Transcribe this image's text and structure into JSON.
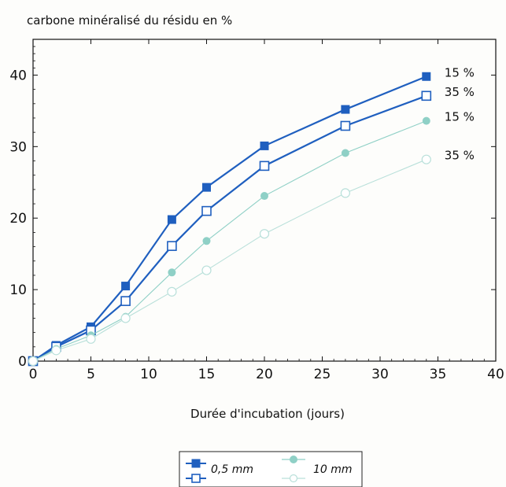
{
  "chart_data": {
    "type": "line",
    "title": "",
    "ylabel": "carbone minéralisé du résidu en %",
    "xlabel": "Durée d'incubation (jours)",
    "xlim": [
      0,
      40
    ],
    "ylim": [
      0,
      45
    ],
    "xticks": [
      0,
      5,
      10,
      15,
      20,
      25,
      30,
      35,
      40
    ],
    "yticks": [
      0,
      10,
      20,
      30,
      40
    ],
    "grid": false,
    "legend_position": "bottom",
    "legend": {
      "entry_dark": "0,5 mm",
      "entry_light": "10 mm"
    },
    "series": [
      {
        "color": "#1f5fbf",
        "marker": "filled-square",
        "end_label": "15 %",
        "x": [
          0,
          2,
          5,
          8,
          12,
          15,
          20,
          27,
          34
        ],
        "y": [
          0,
          2.2,
          4.8,
          10.5,
          19.8,
          24.3,
          30.1,
          35.2,
          39.8
        ]
      },
      {
        "color": "#1f5fbf",
        "marker": "open-square",
        "end_label": "35 %",
        "x": [
          0,
          2,
          5,
          8,
          12,
          15,
          20,
          27,
          34
        ],
        "y": [
          0,
          2.0,
          4.3,
          8.4,
          16.1,
          21.0,
          27.3,
          32.9,
          37.1
        ]
      },
      {
        "color": "#8fd0c6",
        "marker": "filled-circle",
        "end_label": "15 %",
        "x": [
          0,
          2,
          5,
          8,
          12,
          15,
          20,
          27,
          34
        ],
        "y": [
          0,
          1.7,
          3.6,
          6.2,
          12.4,
          16.8,
          23.1,
          29.1,
          33.6
        ]
      },
      {
        "color": "#b9e0da",
        "marker": "open-circle",
        "end_label": "35 %",
        "x": [
          0,
          2,
          5,
          8,
          12,
          15,
          20,
          27,
          34
        ],
        "y": [
          0,
          1.5,
          3.1,
          6.0,
          9.7,
          12.7,
          17.8,
          23.5,
          28.2
        ]
      }
    ]
  }
}
